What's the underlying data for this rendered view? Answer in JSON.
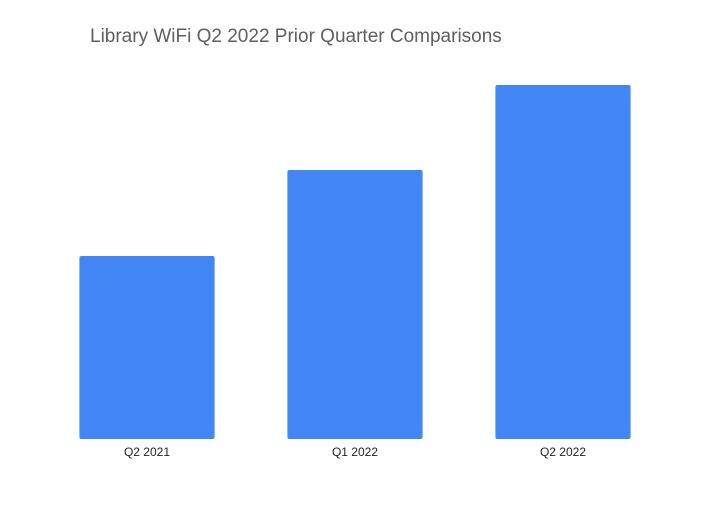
{
  "chart_data": {
    "type": "bar",
    "title": "Library WiFi Q2 2022 Prior Quarter Comparisons",
    "categories": [
      "Q2 2021",
      "Q1 2022",
      "Q2 2022"
    ],
    "values": [
      183,
      269,
      354
    ],
    "color": "#4285f4",
    "ylim": [
      0,
      400
    ]
  }
}
